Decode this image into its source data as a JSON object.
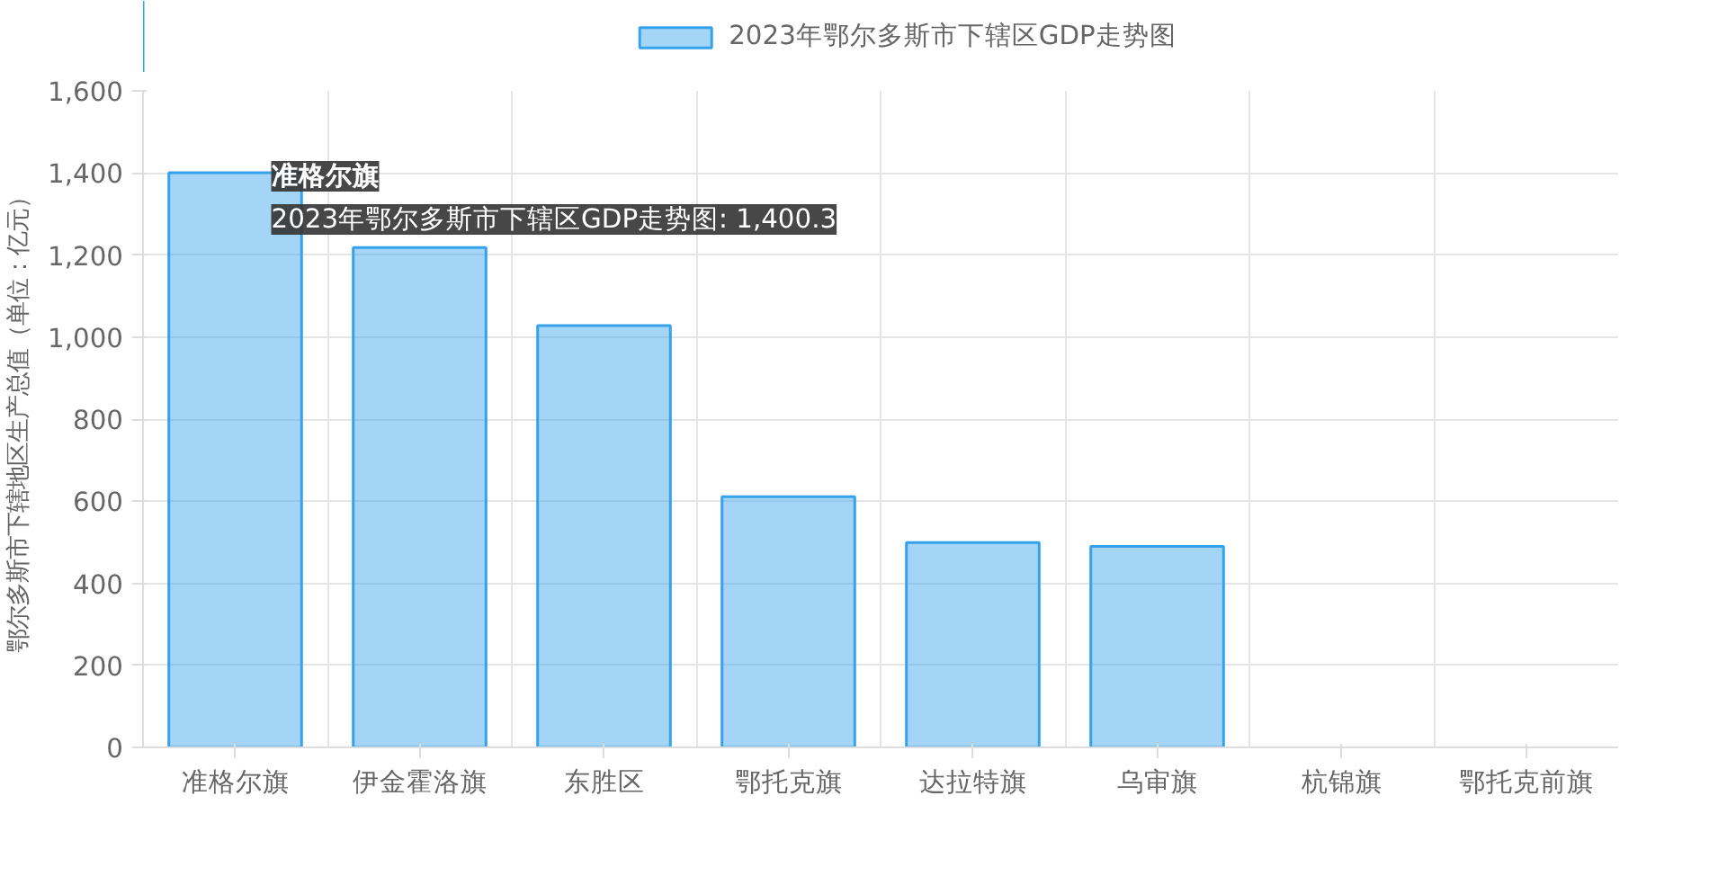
{
  "chart_data": {
    "type": "bar",
    "ylabel": "鄂尔多斯市下辖地区生产总值（单位：亿元）",
    "categories": [
      "准格尔旗",
      "伊金霍洛旗",
      "东胜区",
      "鄂托克旗",
      "达拉特旗",
      "乌审旗",
      "杭锦旗",
      "鄂托克前旗"
    ],
    "series": [
      {
        "name": "2023年鄂尔多斯市下辖区GDP走势图",
        "color": "#36a2eb",
        "values": [
          1400.3,
          1218,
          1028,
          611,
          499,
          490,
          null,
          null
        ]
      }
    ],
    "ylim": [
      0,
      1600
    ],
    "yticks": [
      0,
      200,
      400,
      600,
      800,
      {
        "value": 1000,
        "label": "1,000"
      },
      {
        "value": 1200,
        "label": "1,200"
      },
      {
        "value": 1400,
        "label": "1,400"
      },
      {
        "value": 1600,
        "label": "1,600"
      }
    ],
    "grid": true,
    "legend": "top",
    "annotations": [
      {
        "text": "准格尔旗",
        "x": "准格尔旗",
        "y": 1400.3
      },
      {
        "text": "2023年鄂尔多斯市下辖区GDP走势图: 1,400.3",
        "x": "准格尔旗",
        "y": 1400.3
      }
    ]
  }
}
